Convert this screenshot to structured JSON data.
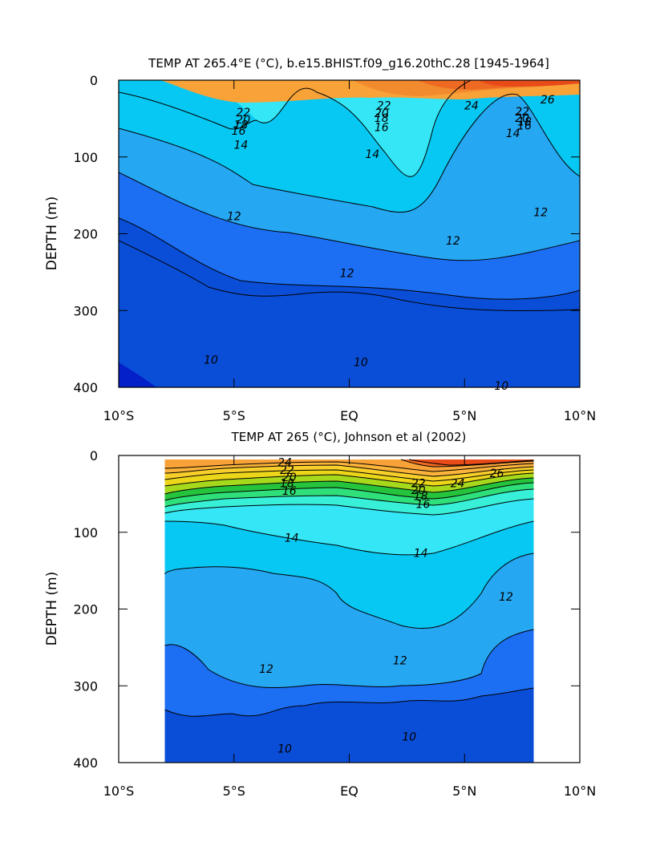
{
  "chart_data": [
    {
      "type": "heatmap",
      "title": "TEMP AT 265.4°E (°C), b.e15.BHIST.f09_g16.20thC.28 [1945-1964]",
      "ylabel": "DEPTH (m)",
      "xlabel": "",
      "x_ticks": [
        "10°S",
        "5°S",
        "EQ",
        "5°N",
        "10°N"
      ],
      "x_tick_values": [
        -10,
        -5,
        0,
        5,
        10
      ],
      "y_ticks": [
        "0",
        "100",
        "200",
        "300",
        "400"
      ],
      "y_tick_values": [
        0,
        100,
        200,
        300,
        400
      ],
      "xlim": [
        -10,
        10
      ],
      "ylim": [
        400,
        0
      ],
      "lat_extent": [
        -10,
        10
      ],
      "contour_interval": 1,
      "contour_labels": [
        {
          "text": "22",
          "lat": -4.6,
          "depth": 43
        },
        {
          "text": "20",
          "lat": -4.6,
          "depth": 52
        },
        {
          "text": "18",
          "lat": -4.7,
          "depth": 59
        },
        {
          "text": "16",
          "lat": -4.8,
          "depth": 67
        },
        {
          "text": "14",
          "lat": -4.7,
          "depth": 85
        },
        {
          "text": "22",
          "lat": 1.5,
          "depth": 34
        },
        {
          "text": "20",
          "lat": 1.4,
          "depth": 44
        },
        {
          "text": "18",
          "lat": 1.4,
          "depth": 50
        },
        {
          "text": "16",
          "lat": 1.4,
          "depth": 62
        },
        {
          "text": "24",
          "lat": 5.3,
          "depth": 34
        },
        {
          "text": "26",
          "lat": 8.6,
          "depth": 26
        },
        {
          "text": "22",
          "lat": 7.5,
          "depth": 42
        },
        {
          "text": "20",
          "lat": 7.5,
          "depth": 50
        },
        {
          "text": "18",
          "lat": 7.6,
          "depth": 55
        },
        {
          "text": "16",
          "lat": 7.6,
          "depth": 60
        },
        {
          "text": "14",
          "lat": 7.1,
          "depth": 70
        },
        {
          "text": "14",
          "lat": 1.0,
          "depth": 97
        },
        {
          "text": "12",
          "lat": -5.0,
          "depth": 178
        },
        {
          "text": "12",
          "lat": 4.5,
          "depth": 210
        },
        {
          "text": "12",
          "lat": 8.3,
          "depth": 173
        },
        {
          "text": "12",
          "lat": -0.1,
          "depth": 252
        },
        {
          "text": "10",
          "lat": -6.0,
          "depth": 365
        },
        {
          "text": "10",
          "lat": 0.5,
          "depth": 368
        },
        {
          "text": "10",
          "lat": 6.6,
          "depth": 399
        }
      ]
    },
    {
      "type": "heatmap",
      "title": "TEMP AT 265 (°C), Johnson et al (2002)",
      "ylabel": "DEPTH (m)",
      "xlabel": "",
      "x_ticks": [
        "10°S",
        "5°S",
        "EQ",
        "5°N",
        "10°N"
      ],
      "x_tick_values": [
        -10,
        -5,
        0,
        5,
        10
      ],
      "y_ticks": [
        "0",
        "100",
        "200",
        "300",
        "400"
      ],
      "y_tick_values": [
        0,
        100,
        200,
        300,
        400
      ],
      "xlim": [
        -10,
        10
      ],
      "ylim": [
        400,
        0
      ],
      "lat_extent": [
        -8,
        8
      ],
      "contour_interval": 1,
      "contour_labels": [
        {
          "text": "24",
          "lat": -2.8,
          "depth": 10
        },
        {
          "text": "22",
          "lat": -2.7,
          "depth": 20
        },
        {
          "text": "20",
          "lat": -2.6,
          "depth": 29
        },
        {
          "text": "18",
          "lat": -2.7,
          "depth": 37
        },
        {
          "text": "16",
          "lat": -2.6,
          "depth": 47
        },
        {
          "text": "22",
          "lat": 3.0,
          "depth": 37
        },
        {
          "text": "24",
          "lat": 4.7,
          "depth": 37
        },
        {
          "text": "26",
          "lat": 6.4,
          "depth": 24
        },
        {
          "text": "20",
          "lat": 3.0,
          "depth": 46
        },
        {
          "text": "18",
          "lat": 3.1,
          "depth": 54
        },
        {
          "text": "16",
          "lat": 3.2,
          "depth": 64
        },
        {
          "text": "14",
          "lat": -2.5,
          "depth": 108
        },
        {
          "text": "14",
          "lat": 3.1,
          "depth": 128
        },
        {
          "text": "12",
          "lat": 6.8,
          "depth": 185
        },
        {
          "text": "12",
          "lat": 2.2,
          "depth": 268
        },
        {
          "text": "12",
          "lat": -3.6,
          "depth": 279
        },
        {
          "text": "10",
          "lat": -2.8,
          "depth": 383
        },
        {
          "text": "10",
          "lat": 2.6,
          "depth": 367
        }
      ]
    }
  ]
}
